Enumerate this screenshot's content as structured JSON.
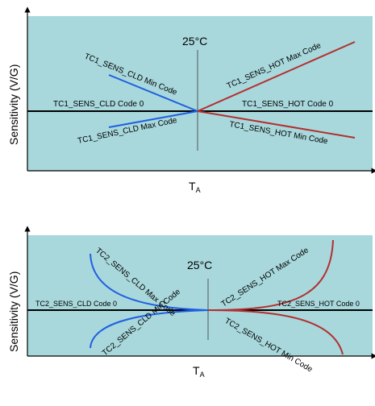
{
  "colors": {
    "panel_bg": "#a8d8dc",
    "cold_curve": "#1f5fe0",
    "hot_curve": "#b23030",
    "axis": "#000000",
    "midline": "#444444"
  },
  "top": {
    "temp_label": "25°C",
    "ylabel": "Sensitivity (V/G)",
    "xlabel_main": "T",
    "xlabel_sub": "A",
    "labels": {
      "cld_min": "TC1_SENS_CLD Min Code",
      "cld_code0": "TC1_SENS_CLD Code 0",
      "cld_max": "TC1_SENS_CLD Max Code",
      "hot_max": "TC1_SENS_HOT Max Code",
      "hot_code0": "TC1_SENS_HOT Code 0",
      "hot_min": "TC1_SENS_HOT Min Code"
    }
  },
  "bottom": {
    "temp_label": "25°C",
    "ylabel": "Sensitivity (V/G)",
    "xlabel_main": "T",
    "xlabel_sub": "A",
    "labels": {
      "cld_max": "TC2_SENS_CLD Max Code",
      "cld_code0": "TC2_SENS_CLD Code 0",
      "cld_min": "TC2_SENS_CLD Min Code",
      "hot_max": "TC2_SENS_HOT Max Code",
      "hot_code0": "TC2_SENS_HOT Code 0",
      "hot_min": "TC2_SENS_HOT Min Code"
    }
  }
}
